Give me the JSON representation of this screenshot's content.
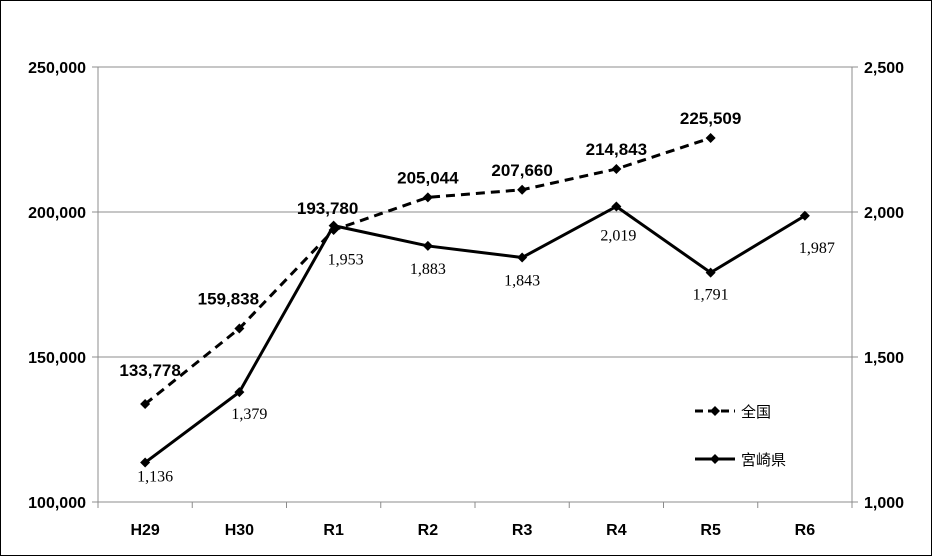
{
  "chart_data": {
    "type": "line",
    "categories": [
      "H29",
      "H30",
      "R1",
      "R2",
      "R3",
      "R4",
      "R5",
      "R6"
    ],
    "series": [
      {
        "name": "全国",
        "axis": "left",
        "style": "dashed",
        "values": [
          133778,
          159838,
          193780,
          205044,
          207660,
          214843,
          225509,
          null
        ],
        "labels": [
          "133,778",
          "159,838",
          "193,780",
          "205,044",
          "207,660",
          "214,843",
          "225,509",
          ""
        ]
      },
      {
        "name": "宮崎県",
        "axis": "right",
        "style": "solid",
        "values": [
          1136,
          1379,
          1953,
          1883,
          1843,
          2019,
          1791,
          1987
        ],
        "labels": [
          "1,136",
          "1,379",
          "1,953",
          "1,883",
          "1,843",
          "2,019",
          "1,791",
          "1,987"
        ]
      }
    ],
    "y_left": {
      "ylim": [
        100000,
        250000
      ],
      "ticks": [
        "100,000",
        "150,000",
        "200,000",
        "250,000"
      ]
    },
    "y_right": {
      "ylim": [
        1000,
        2500
      ],
      "ticks": [
        "1,000",
        "1,500",
        "2,000",
        "2,500"
      ]
    },
    "grid": true,
    "legend_position": "bottom-right",
    "title": "",
    "xlabel": "",
    "ylabel": "",
    "colors": {
      "line": "#000000",
      "grid": "#8c8c8c"
    }
  }
}
